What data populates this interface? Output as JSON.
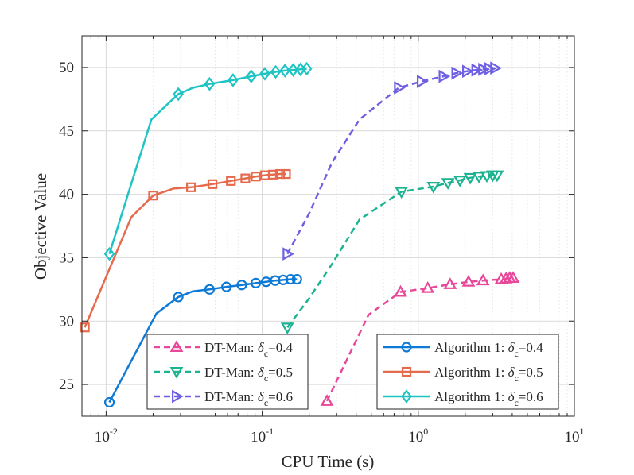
{
  "chart_data": {
    "type": "line",
    "xscale": "log",
    "xlabel": "CPU Time (s)",
    "ylabel": "Objective Value",
    "xlim": [
      0.007,
      10
    ],
    "ylim": [
      22.5,
      52.5
    ],
    "grid": true,
    "xticks": [
      {
        "value": 0.01,
        "base": "10",
        "exp": "-2"
      },
      {
        "value": 0.1,
        "base": "10",
        "exp": "-1"
      },
      {
        "value": 1,
        "base": "10",
        "exp": "0"
      },
      {
        "value": 10,
        "base": "10",
        "exp": "1"
      }
    ],
    "yticks": [
      25,
      30,
      35,
      40,
      45,
      50
    ],
    "legends": [
      {
        "position": "bottom-left",
        "entries": [
          {
            "series": 0,
            "prefix": "DT-Man: ",
            "delta": "δ",
            "sub": "c",
            "suffix": "=0.4"
          },
          {
            "series": 1,
            "prefix": "DT-Man: ",
            "delta": "δ",
            "sub": "c",
            "suffix": "=0.5"
          },
          {
            "series": 2,
            "prefix": "DT-Man: ",
            "delta": "δ",
            "sub": "c",
            "suffix": "=0.6"
          }
        ]
      },
      {
        "position": "bottom-right",
        "entries": [
          {
            "series": 3,
            "prefix": "Algorithm 1: ",
            "delta": "δ",
            "sub": "c",
            "suffix": "=0.4"
          },
          {
            "series": 4,
            "prefix": "Algorithm 1: ",
            "delta": "δ",
            "sub": "c",
            "suffix": "=0.5"
          },
          {
            "series": 5,
            "prefix": "Algorithm 1: ",
            "delta": "δ",
            "sub": "c",
            "suffix": "=0.6"
          }
        ]
      }
    ],
    "series": [
      {
        "name": "DT-Man: δc=0.4",
        "color": "#e8489a",
        "dash": true,
        "marker": "triangle-up",
        "x": [
          0.26,
          0.48,
          0.77,
          1.15,
          1.6,
          2.1,
          2.6,
          3.4,
          3.65,
          3.85,
          4.05
        ],
        "y": [
          23.7,
          30.5,
          32.3,
          32.6,
          32.9,
          33.1,
          33.2,
          33.3,
          33.35,
          33.4,
          33.4
        ],
        "markers": [
          0,
          2,
          3,
          4,
          5,
          6,
          7,
          8,
          9,
          10
        ]
      },
      {
        "name": "DT-Man: δc=0.5",
        "color": "#1cb391",
        "dash": true,
        "marker": "triangle-down",
        "x": [
          0.145,
          0.2,
          0.28,
          0.42,
          0.78,
          1.25,
          1.55,
          1.85,
          2.15,
          2.45,
          2.75,
          3.0,
          3.2
        ],
        "y": [
          29.5,
          31.8,
          34.5,
          38.0,
          40.2,
          40.6,
          40.9,
          41.1,
          41.3,
          41.4,
          41.45,
          41.5,
          41.5
        ],
        "markers": [
          0,
          4,
          5,
          6,
          7,
          8,
          9,
          10,
          11,
          12
        ]
      },
      {
        "name": "DT-Man: δc=0.6",
        "color": "#6e5fe3",
        "dash": true,
        "marker": "triangle-right",
        "x": [
          0.145,
          0.2,
          0.28,
          0.42,
          0.75,
          1.05,
          1.45,
          1.75,
          2.05,
          2.35,
          2.6,
          2.85,
          3.1
        ],
        "y": [
          35.3,
          38.5,
          42.5,
          45.9,
          48.4,
          48.9,
          49.3,
          49.55,
          49.7,
          49.8,
          49.85,
          49.9,
          49.95
        ],
        "markers": [
          0,
          4,
          5,
          6,
          7,
          8,
          9,
          10,
          11,
          12
        ]
      },
      {
        "name": "Algorithm 1: δc=0.4",
        "color": "#0f7ad6",
        "dash": false,
        "marker": "circle",
        "x": [
          0.0105,
          0.021,
          0.029,
          0.036,
          0.046,
          0.059,
          0.074,
          0.091,
          0.106,
          0.121,
          0.136,
          0.152,
          0.167
        ],
        "y": [
          23.6,
          30.6,
          31.9,
          32.35,
          32.5,
          32.7,
          32.85,
          33.0,
          33.1,
          33.2,
          33.25,
          33.3,
          33.3
        ],
        "markers": [
          0,
          2,
          4,
          5,
          6,
          7,
          8,
          9,
          10,
          11,
          12
        ]
      },
      {
        "name": "Algorithm 1: δc=0.5",
        "color": "#e56b4e",
        "dash": false,
        "marker": "square",
        "x": [
          0.0073,
          0.0145,
          0.02,
          0.027,
          0.035,
          0.048,
          0.063,
          0.078,
          0.091,
          0.104,
          0.117,
          0.13,
          0.142
        ],
        "y": [
          29.5,
          38.2,
          39.9,
          40.45,
          40.55,
          40.8,
          41.05,
          41.25,
          41.4,
          41.5,
          41.55,
          41.6,
          41.6
        ],
        "markers": [
          0,
          2,
          4,
          5,
          6,
          7,
          8,
          9,
          10,
          11,
          12
        ]
      },
      {
        "name": "Algorithm 1: δc=0.6",
        "color": "#1ec4c4",
        "dash": false,
        "marker": "diamond",
        "x": [
          0.0105,
          0.0195,
          0.029,
          0.036,
          0.046,
          0.065,
          0.085,
          0.104,
          0.122,
          0.14,
          0.158,
          0.176,
          0.193
        ],
        "y": [
          35.3,
          45.9,
          47.9,
          48.4,
          48.7,
          49.0,
          49.3,
          49.5,
          49.65,
          49.75,
          49.8,
          49.85,
          49.9
        ],
        "markers": [
          0,
          2,
          4,
          5,
          6,
          7,
          8,
          9,
          10,
          11,
          12
        ]
      }
    ]
  }
}
